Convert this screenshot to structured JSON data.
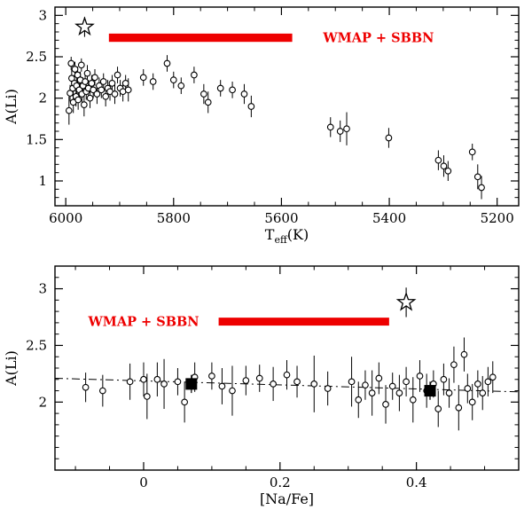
{
  "figure": {
    "background": "#ffffff",
    "accent_red": "#ee0000",
    "ink": "#000000"
  },
  "chart_data": [
    {
      "name": "lithium-vs-teff-panel",
      "type": "scatter",
      "title": "",
      "xlabel": "T_eff(K)",
      "xlabel_parts": [
        {
          "t": "T"
        },
        {
          "t": "eff",
          "sub": true
        },
        {
          "t": "(K)"
        }
      ],
      "ylabel": "A(Li)",
      "xlim": [
        6020,
        5160
      ],
      "ylim": [
        0.7,
        3.1
      ],
      "x_axis_reversed": true,
      "xticks": [
        6000,
        5800,
        5600,
        5400,
        5200
      ],
      "yticks": [
        1,
        1.5,
        2,
        2.5,
        3
      ],
      "xminor": 50,
      "yminor": 0.1,
      "grid": false,
      "legend": null,
      "band": {
        "label": "WMAP + SBBN",
        "color": "#ee0000",
        "x_start": 5920,
        "x_end": 5580,
        "y": 2.73,
        "half_height": 0.05,
        "label_x": 5420,
        "label_y": 2.73
      },
      "star": {
        "x": 5965,
        "y": 2.86,
        "err": 0.12
      },
      "points": [
        [
          5994,
          1.85,
          0.17
        ],
        [
          5992,
          2.06,
          0.1
        ],
        [
          5990,
          2.42,
          0.08
        ],
        [
          5989,
          2.24,
          0.1
        ],
        [
          5987,
          2.12,
          0.1
        ],
        [
          5986,
          1.95,
          0.13
        ],
        [
          5984,
          2.18,
          0.1
        ],
        [
          5983,
          2.35,
          0.09
        ],
        [
          5981,
          2.02,
          0.12
        ],
        [
          5980,
          2.15,
          0.1
        ],
        [
          5978,
          2.28,
          0.1
        ],
        [
          5977,
          1.98,
          0.12
        ],
        [
          5975,
          2.1,
          0.1
        ],
        [
          5973,
          2.22,
          0.1
        ],
        [
          5971,
          2.4,
          0.08
        ],
        [
          5970,
          2.05,
          0.12
        ],
        [
          5968,
          2.15,
          0.1
        ],
        [
          5966,
          1.92,
          0.14
        ],
        [
          5964,
          2.2,
          0.1
        ],
        [
          5962,
          2.08,
          0.1
        ],
        [
          5960,
          2.3,
          0.1
        ],
        [
          5958,
          2.12,
          0.1
        ],
        [
          5955,
          2.0,
          0.12
        ],
        [
          5952,
          2.18,
          0.1
        ],
        [
          5949,
          2.1,
          0.1
        ],
        [
          5946,
          2.25,
          0.1
        ],
        [
          5942,
          2.05,
          0.12
        ],
        [
          5938,
          2.15,
          0.1
        ],
        [
          5934,
          2.1,
          0.1
        ],
        [
          5930,
          2.2,
          0.1
        ],
        [
          5926,
          2.02,
          0.12
        ],
        [
          5922,
          2.12,
          0.1
        ],
        [
          5918,
          2.08,
          0.11
        ],
        [
          5914,
          2.18,
          0.1
        ],
        [
          5909,
          2.05,
          0.12
        ],
        [
          5904,
          2.28,
          0.1
        ],
        [
          5899,
          2.12,
          0.1
        ],
        [
          5894,
          2.08,
          0.12
        ],
        [
          5889,
          2.18,
          0.1
        ],
        [
          5884,
          2.1,
          0.14
        ],
        [
          5856,
          2.25,
          0.1
        ],
        [
          5838,
          2.2,
          0.1
        ],
        [
          5812,
          2.42,
          0.1
        ],
        [
          5800,
          2.22,
          0.1
        ],
        [
          5786,
          2.15,
          0.1
        ],
        [
          5762,
          2.28,
          0.1
        ],
        [
          5744,
          2.05,
          0.12
        ],
        [
          5736,
          1.95,
          0.13
        ],
        [
          5713,
          2.12,
          0.1
        ],
        [
          5691,
          2.1,
          0.1
        ],
        [
          5669,
          2.05,
          0.12
        ],
        [
          5656,
          1.9,
          0.13
        ],
        [
          5509,
          1.65,
          0.12
        ],
        [
          5491,
          1.6,
          0.13
        ],
        [
          5479,
          1.63,
          0.2
        ],
        [
          5401,
          1.52,
          0.12
        ],
        [
          5309,
          1.25,
          0.12
        ],
        [
          5299,
          1.18,
          0.13
        ],
        [
          5291,
          1.12,
          0.12
        ],
        [
          5246,
          1.35,
          0.1
        ],
        [
          5236,
          1.05,
          0.15
        ],
        [
          5229,
          0.92,
          0.14
        ]
      ]
    },
    {
      "name": "lithium-vs-sodium-panel",
      "type": "scatter",
      "title": "",
      "xlabel": "[Na/Fe]",
      "ylabel": "A(Li)",
      "xlim": [
        -0.13,
        0.55
      ],
      "ylim": [
        1.4,
        3.2
      ],
      "x_axis_reversed": false,
      "xticks": [
        0,
        0.2,
        0.4
      ],
      "yticks": [
        2,
        2.5,
        3
      ],
      "xminor": 0.05,
      "yminor": 0.1,
      "grid": false,
      "legend": null,
      "band": {
        "label": "WMAP + SBBN",
        "color": "#ee0000",
        "x_start": 0.11,
        "x_end": 0.36,
        "y": 2.71,
        "half_height": 0.035,
        "label_x": 0.0,
        "label_y": 2.71
      },
      "star": {
        "x": 0.385,
        "y": 2.88,
        "err": 0.13
      },
      "squares": [
        {
          "x": 0.07,
          "y": 2.16,
          "err": 0.08
        },
        {
          "x": 0.42,
          "y": 2.1,
          "err": 0.08
        }
      ],
      "fit_line": {
        "x1": -0.13,
        "y1": 2.21,
        "x2": 0.55,
        "y2": 2.09,
        "style": "dash-dot"
      },
      "points": [
        [
          -0.085,
          2.13,
          0.13
        ],
        [
          -0.06,
          2.1,
          0.14
        ],
        [
          -0.02,
          2.18,
          0.16
        ],
        [
          0.0,
          2.2,
          0.15
        ],
        [
          0.005,
          2.05,
          0.2
        ],
        [
          0.02,
          2.2,
          0.15
        ],
        [
          0.03,
          2.16,
          0.22
        ],
        [
          0.05,
          2.18,
          0.12
        ],
        [
          0.06,
          2.0,
          0.18
        ],
        [
          0.075,
          2.22,
          0.13
        ],
        [
          0.1,
          2.23,
          0.12
        ],
        [
          0.115,
          2.14,
          0.16
        ],
        [
          0.13,
          2.1,
          0.22
        ],
        [
          0.15,
          2.19,
          0.13
        ],
        [
          0.17,
          2.21,
          0.12
        ],
        [
          0.19,
          2.16,
          0.15
        ],
        [
          0.21,
          2.24,
          0.13
        ],
        [
          0.225,
          2.18,
          0.14
        ],
        [
          0.25,
          2.16,
          0.25
        ],
        [
          0.27,
          2.12,
          0.15
        ],
        [
          0.305,
          2.18,
          0.22
        ],
        [
          0.315,
          2.02,
          0.16
        ],
        [
          0.325,
          2.15,
          0.13
        ],
        [
          0.335,
          2.08,
          0.2
        ],
        [
          0.345,
          2.21,
          0.14
        ],
        [
          0.355,
          1.98,
          0.17
        ],
        [
          0.365,
          2.14,
          0.12
        ],
        [
          0.375,
          2.08,
          0.16
        ],
        [
          0.385,
          2.18,
          0.13
        ],
        [
          0.395,
          2.02,
          0.2
        ],
        [
          0.405,
          2.23,
          0.14
        ],
        [
          0.415,
          2.1,
          0.15
        ],
        [
          0.425,
          2.16,
          0.12
        ],
        [
          0.432,
          1.94,
          0.16
        ],
        [
          0.44,
          2.2,
          0.14
        ],
        [
          0.448,
          2.08,
          0.13
        ],
        [
          0.455,
          2.33,
          0.16
        ],
        [
          0.462,
          1.95,
          0.2
        ],
        [
          0.47,
          2.42,
          0.15
        ],
        [
          0.475,
          2.12,
          0.13
        ],
        [
          0.482,
          2.0,
          0.16
        ],
        [
          0.49,
          2.16,
          0.12
        ],
        [
          0.497,
          2.08,
          0.15
        ],
        [
          0.505,
          2.18,
          0.13
        ],
        [
          0.512,
          2.22,
          0.14
        ]
      ]
    }
  ]
}
